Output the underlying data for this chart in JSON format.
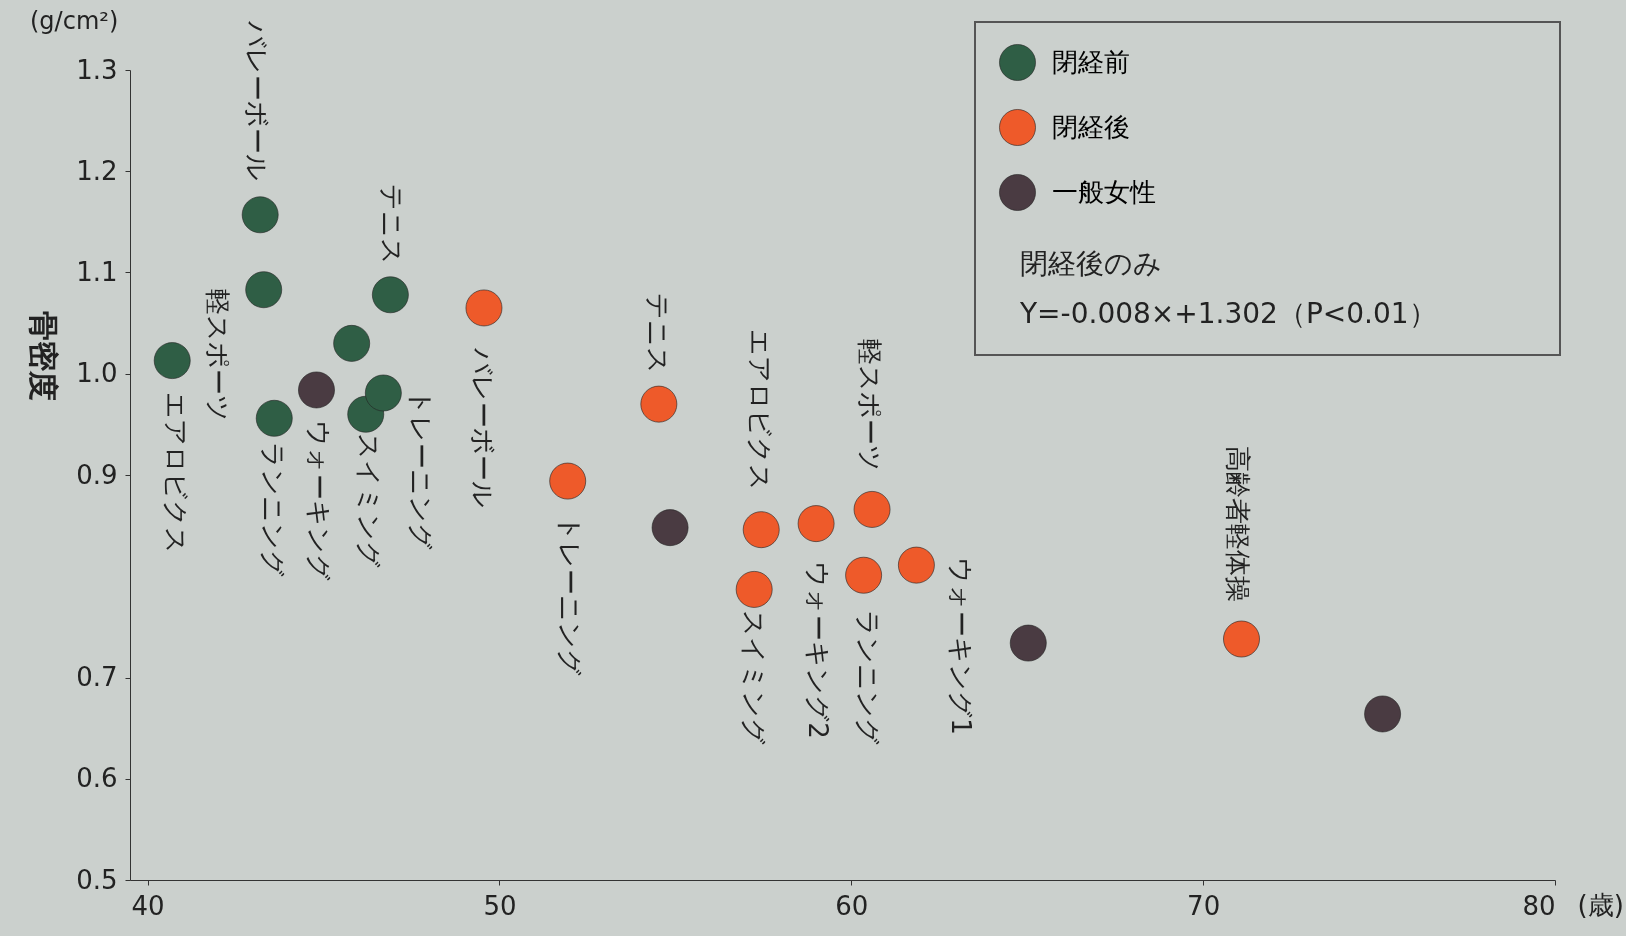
{
  "chart_data": {
    "type": "scatter",
    "xlabel": "(歳)",
    "ylabel": "骨密度",
    "xlim": [
      39.5,
      80
    ],
    "xticks": [
      40,
      50,
      60,
      70,
      80
    ],
    "ylim": [
      0.5,
      1.3
    ],
    "yticks": [
      1.3,
      1.2,
      1.1,
      {
        "value": 1,
        "label": "1.0"
      },
      0.9,
      0.7,
      0.6,
      0.5
    ],
    "grid": false,
    "legend": "top right",
    "marker": "circle",
    "series": [
      {
        "name": "閉経前",
        "color": "#2f5e45",
        "x": [
          40.7,
          43.2,
          43.3,
          43.6,
          45.8,
          46.2,
          46.7,
          46.9
        ],
        "values": [
          1.013,
          1.157,
          1.083,
          0.956,
          1.03,
          0.96,
          0.981,
          1.078
        ]
      },
      {
        "name": "閉経後",
        "color": "#ee5a2a",
        "x": [
          49.56,
          51.94,
          54.53,
          57.44,
          57.24,
          59.0,
          60.59,
          60.35,
          61.85,
          71.09
        ],
        "values": [
          1.065,
          0.894,
          0.97,
          0.846,
          0.787,
          0.852,
          0.866,
          0.801,
          0.811,
          0.738
        ]
      },
      {
        "name": "一般女性",
        "color": "#4a3b42",
        "x": [
          44.8,
          54.85,
          65.03,
          75.1
        ],
        "values": [
          0.984,
          0.848,
          0.734,
          0.664
        ]
      }
    ],
    "annotations": [
      "(g/cm²)",
      "閉経後のみ",
      "Y=-0.008×+1.302（P<0.01）",
      "バレーボール",
      "軽スポーツ",
      "エアロビクス",
      "ランニング",
      "ウォーキング",
      "スイミング",
      "トレーニング",
      "テニス",
      "バレーボール",
      "トレーニング",
      "テニス",
      "エアロビクス",
      "スイミング",
      "ウォーキング2",
      "軽スポーツ",
      "ランニング",
      "ウォーキング1",
      "高齢者軽体操"
    ]
  }
}
